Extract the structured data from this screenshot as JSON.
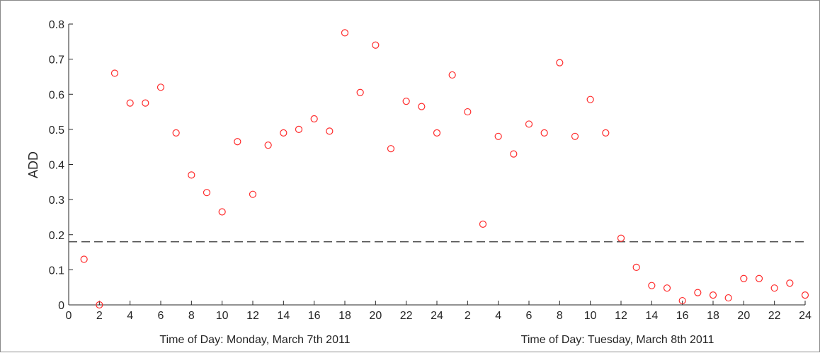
{
  "chart_data": {
    "type": "scatter",
    "ylabel": "ADD",
    "xlabel_segments": [
      "Time of Day: Monday,  March 7th 2011",
      "Time of Day: Tuesday,  March 8th 2011"
    ],
    "x_tick_labels": [
      "0",
      "2",
      "4",
      "6",
      "8",
      "10",
      "12",
      "14",
      "16",
      "18",
      "20",
      "22",
      "24",
      "2",
      "4",
      "6",
      "8",
      "10",
      "12",
      "14",
      "16",
      "18",
      "20",
      "22",
      "24"
    ],
    "xlim": [
      0,
      48
    ],
    "y_ticks": [
      0,
      0.1,
      0.2,
      0.3,
      0.4,
      0.5,
      0.6,
      0.7,
      0.8
    ],
    "y_tick_labels": [
      "0",
      "0.1",
      "0.2",
      "0.3",
      "0.4",
      "0.5",
      "0.6",
      "0.7",
      "0.8"
    ],
    "ylim": [
      0,
      0.8
    ],
    "threshold": 0.18,
    "marker_color": "#ff2b2b",
    "threshold_color": "#555555",
    "series": [
      {
        "x": [
          1,
          2,
          3,
          4,
          5,
          6,
          7,
          8,
          9,
          10,
          11,
          12,
          13,
          14,
          15,
          16,
          17,
          18,
          19,
          20,
          21,
          22,
          23,
          24,
          25,
          26,
          27,
          28,
          29,
          30,
          31,
          32,
          33,
          34,
          35,
          36,
          37,
          38,
          39,
          40,
          41,
          42,
          43,
          44,
          45,
          46,
          47,
          48
        ],
        "y": [
          0.13,
          0.0,
          0.66,
          0.575,
          0.575,
          0.62,
          0.49,
          0.37,
          0.32,
          0.265,
          0.465,
          0.315,
          0.455,
          0.49,
          0.5,
          0.53,
          0.495,
          0.775,
          0.605,
          0.74,
          0.445,
          0.58,
          0.565,
          0.49,
          0.655,
          0.55,
          0.23,
          0.48,
          0.43,
          0.515,
          0.49,
          0.69,
          0.48,
          0.585,
          0.49,
          0.19,
          0.107,
          0.055,
          0.048,
          0.012,
          0.035,
          0.028,
          0.02,
          0.075,
          0.075,
          0.048,
          0.062,
          0.028
        ]
      }
    ]
  }
}
